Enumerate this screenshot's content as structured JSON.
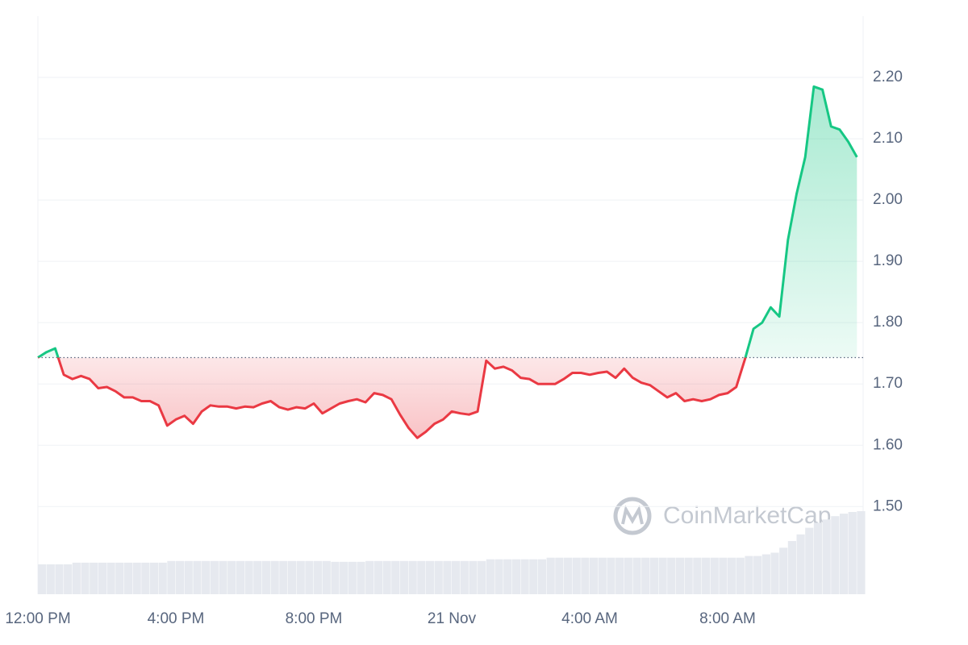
{
  "chart_data": {
    "type": "line",
    "watermark": "CoinMarketCap",
    "categories": [
      "12:00 PM",
      null,
      null,
      null,
      null,
      null,
      null,
      null,
      null,
      null,
      null,
      null,
      null,
      null,
      null,
      null,
      "4:00 PM",
      null,
      null,
      null,
      null,
      null,
      null,
      null,
      null,
      null,
      null,
      null,
      null,
      null,
      null,
      null,
      "8:00 PM",
      null,
      null,
      null,
      null,
      null,
      null,
      null,
      null,
      null,
      null,
      null,
      null,
      null,
      null,
      null,
      "21 Nov",
      null,
      null,
      null,
      null,
      null,
      null,
      null,
      null,
      null,
      null,
      null,
      null,
      null,
      null,
      null,
      "4:00 AM",
      null,
      null,
      null,
      null,
      null,
      null,
      null,
      null,
      null,
      null,
      null,
      null,
      null,
      null,
      null,
      "8:00 AM",
      null,
      null,
      null,
      null,
      null,
      null,
      null,
      null,
      null,
      null,
      null,
      null,
      null,
      null,
      null
    ],
    "series": [
      {
        "values": [
          1.743,
          1.752,
          1.758,
          1.715,
          1.708,
          1.713,
          1.708,
          1.693,
          1.695,
          1.688,
          1.678,
          1.678,
          1.672,
          1.672,
          1.665,
          1.632,
          1.642,
          1.648,
          1.635,
          1.655,
          1.665,
          1.663,
          1.663,
          1.66,
          1.663,
          1.662,
          1.668,
          1.672,
          1.662,
          1.658,
          1.662,
          1.66,
          1.668,
          1.652,
          1.66,
          1.668,
          1.672,
          1.675,
          1.67,
          1.685,
          1.682,
          1.675,
          1.65,
          1.628,
          1.612,
          1.622,
          1.635,
          1.642,
          1.655,
          1.652,
          1.65,
          1.655,
          1.738,
          1.725,
          1.728,
          1.722,
          1.71,
          1.708,
          1.7,
          1.7,
          1.7,
          1.708,
          1.718,
          1.718,
          1.715,
          1.718,
          1.72,
          1.71,
          1.725,
          1.71,
          1.702,
          1.698,
          1.688,
          1.678,
          1.685,
          1.672,
          1.675,
          1.672,
          1.675,
          1.682,
          1.685,
          1.695,
          1.74,
          1.79,
          1.8,
          1.825,
          1.81,
          1.935,
          2.01,
          2.07,
          2.185,
          2.18,
          2.12,
          2.115,
          2.095,
          2.07
        ],
        "up_color": "#16c784",
        "down_color": "#ea3943"
      }
    ],
    "baseline": 1.743,
    "volume": {
      "color": "#e6e9ef",
      "values": [
        36,
        36,
        36,
        36,
        38,
        38,
        38,
        38,
        38,
        38,
        38,
        38,
        38,
        38,
        38,
        40,
        40,
        40,
        40,
        40,
        40,
        40,
        40,
        40,
        40,
        40,
        40,
        40,
        40,
        40,
        40,
        40,
        40,
        40,
        39,
        39,
        39,
        39,
        40,
        40,
        40,
        40,
        40,
        40,
        40,
        40,
        40,
        40,
        40,
        40,
        40,
        40,
        42,
        42,
        42,
        42,
        42,
        42,
        42,
        44,
        44,
        44,
        44,
        44,
        44,
        44,
        44,
        44,
        44,
        44,
        44,
        44,
        44,
        44,
        44,
        44,
        44,
        44,
        44,
        44,
        44,
        44,
        46,
        46,
        48,
        50,
        56,
        64,
        72,
        80,
        86,
        90,
        94,
        97,
        99,
        100
      ]
    },
    "ylim": [
      1.357,
      2.3
    ],
    "yticks": [
      {
        "value": 1.5,
        "label": "1.50"
      },
      {
        "value": 1.6,
        "label": "1.60"
      },
      {
        "value": 1.7,
        "label": "1.70"
      },
      {
        "value": 1.8,
        "label": "1.80"
      },
      {
        "value": 1.9,
        "label": "1.90"
      },
      {
        "value": 2.0,
        "label": "2.00"
      },
      {
        "value": 2.1,
        "label": "2.10"
      },
      {
        "value": 2.2,
        "label": "2.20"
      }
    ],
    "grid": true
  }
}
